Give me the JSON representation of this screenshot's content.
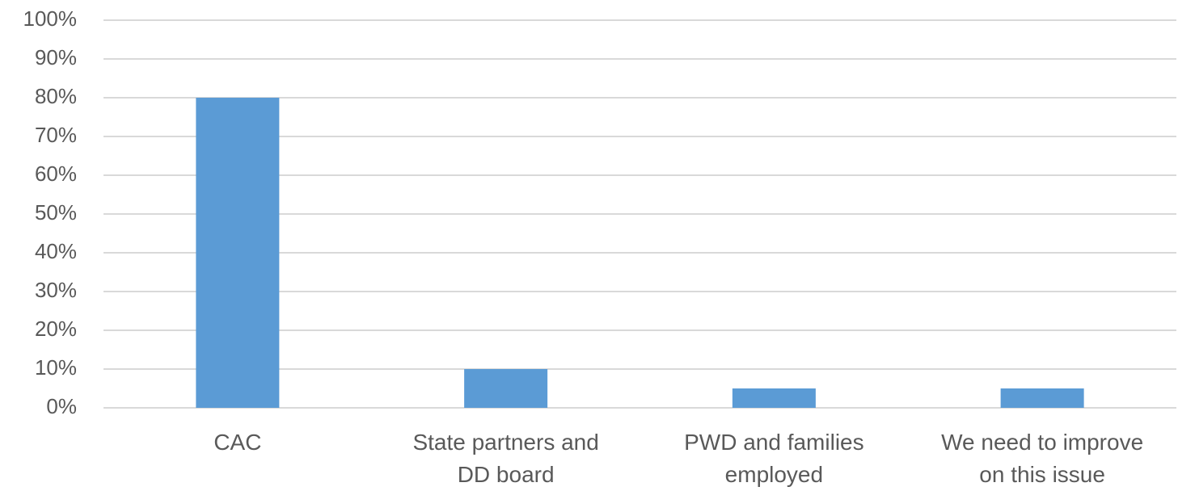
{
  "chart_data": {
    "type": "bar",
    "categories": [
      "CAC",
      "State partners and DD board",
      "PWD and families employed",
      "We need to improve on this issue"
    ],
    "values": [
      80,
      10,
      5,
      5
    ],
    "color": "#5b9bd5",
    "ylim": [
      0,
      100
    ],
    "yticks": [
      {
        "value": 0,
        "label": "0%"
      },
      {
        "value": 10,
        "label": "10%"
      },
      {
        "value": 20,
        "label": "20%"
      },
      {
        "value": 30,
        "label": "30%"
      },
      {
        "value": 40,
        "label": "40%"
      },
      {
        "value": 50,
        "label": "50%"
      },
      {
        "value": 60,
        "label": "60%"
      },
      {
        "value": 70,
        "label": "70%"
      },
      {
        "value": 80,
        "label": "80%"
      },
      {
        "value": 90,
        "label": "90%"
      },
      {
        "value": 100,
        "label": "100%"
      }
    ],
    "grid": true
  }
}
